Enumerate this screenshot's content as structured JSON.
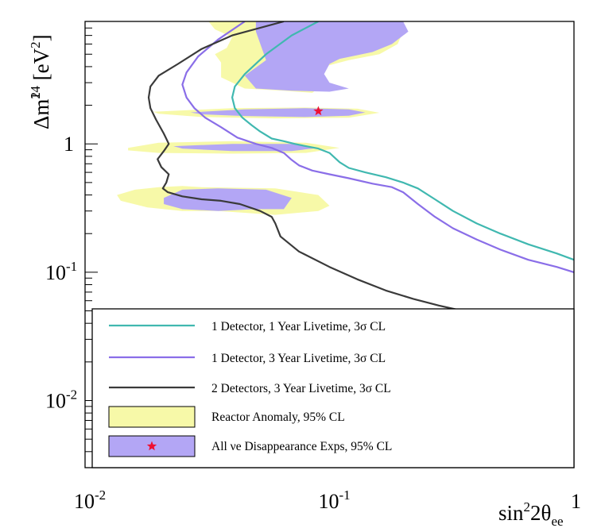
{
  "chart_data": {
    "type": "line",
    "title": "",
    "xlabel": "sin²2θee",
    "ylabel": "Δm²14 [eV²]",
    "x_scale": "log",
    "y_scale": "log",
    "xlim": [
      0.01,
      1
    ],
    "ylim": [
      0.003,
      9
    ],
    "x_ticks": [
      {
        "value": 0.01,
        "base": "10",
        "exp": "-2"
      },
      {
        "value": 0.1,
        "base": "10",
        "exp": "-1"
      },
      {
        "value": 1,
        "base": "1",
        "exp": ""
      }
    ],
    "y_ticks": [
      {
        "value": 0.01,
        "base": "10",
        "exp": "-2"
      },
      {
        "value": 0.1,
        "base": "10",
        "exp": "-1"
      },
      {
        "value": 1,
        "base": "1",
        "exp": ""
      }
    ],
    "grid": false,
    "legend_position": "bottom-right",
    "best_fit_point": {
      "name": "All νe Disappearance Exps best fit",
      "x": 0.09,
      "y": 1.8,
      "marker": "star",
      "color": "#ee1133"
    },
    "series": [
      {
        "name": "1 Detector, 1 Year Livetime, 3σ CL",
        "color": "#40b8b0",
        "x": [
          0.09,
          0.07,
          0.055,
          0.045,
          0.041,
          0.04,
          0.041,
          0.044,
          0.048,
          0.052,
          0.058,
          0.065,
          0.072,
          0.08,
          0.09,
          0.1,
          0.11,
          0.12,
          0.14,
          0.17,
          0.2,
          0.23,
          0.27,
          0.32,
          0.4,
          0.5,
          0.65,
          0.85,
          1.0
        ],
        "y": [
          9.0,
          7.0,
          5.0,
          3.5,
          2.8,
          2.3,
          1.9,
          1.6,
          1.4,
          1.25,
          1.1,
          1.05,
          1.0,
          0.96,
          0.92,
          0.85,
          0.72,
          0.65,
          0.6,
          0.55,
          0.5,
          0.45,
          0.37,
          0.3,
          0.24,
          0.2,
          0.165,
          0.14,
          0.125
        ]
      },
      {
        "name": "1 Detector, 3 Year Livetime, 3σ CL",
        "color": "#8a6ee8",
        "x": [
          0.045,
          0.035,
          0.029,
          0.026,
          0.025,
          0.026,
          0.028,
          0.031,
          0.036,
          0.042,
          0.05,
          0.058,
          0.065,
          0.07,
          0.075,
          0.085,
          0.1,
          0.12,
          0.15,
          0.18,
          0.2,
          0.23,
          0.27,
          0.32,
          0.4,
          0.5,
          0.65,
          0.85,
          1.0
        ],
        "y": [
          9.0,
          6.5,
          4.8,
          3.6,
          2.9,
          2.3,
          1.9,
          1.6,
          1.35,
          1.12,
          1.0,
          0.93,
          0.85,
          0.75,
          0.68,
          0.62,
          0.58,
          0.54,
          0.49,
          0.46,
          0.42,
          0.34,
          0.27,
          0.22,
          0.18,
          0.15,
          0.125,
          0.11,
          0.1
        ]
      },
      {
        "name": "2 Detectors, 3 Year Livetime, 3σ CL",
        "color": "#3a3a3a",
        "x": [
          0.065,
          0.04,
          0.03,
          0.024,
          0.02,
          0.0185,
          0.0182,
          0.0185,
          0.0195,
          0.021,
          0.022,
          0.021,
          0.0198,
          0.0205,
          0.022,
          0.0215,
          0.0208,
          0.0218,
          0.025,
          0.03,
          0.036,
          0.043,
          0.052,
          0.058,
          0.06,
          0.063,
          0.075,
          0.1,
          0.13,
          0.17,
          0.22,
          0.28,
          0.35
        ],
        "y": [
          9.0,
          7.0,
          5.5,
          4.2,
          3.4,
          2.8,
          2.3,
          1.9,
          1.55,
          1.2,
          1.0,
          0.88,
          0.76,
          0.66,
          0.58,
          0.5,
          0.45,
          0.42,
          0.39,
          0.37,
          0.36,
          0.34,
          0.3,
          0.27,
          0.24,
          0.19,
          0.145,
          0.11,
          0.088,
          0.072,
          0.062,
          0.055,
          0.05
        ]
      }
    ],
    "regions": [
      {
        "name": "Reactor Anomaly, 95% CL",
        "color": "#f7f9a8",
        "polygons": [
          {
            "x": [
              0.032,
              0.2,
              0.2,
              0.19,
              0.16,
              0.12,
              0.095,
              0.085,
              0.09,
              0.085,
              0.065,
              0.045,
              0.036,
              0.036,
              0.034,
              0.038,
              0.04,
              0.034,
              0.032
            ],
            "y": [
              9.0,
              9.0,
              7.5,
              6.0,
              5.0,
              4.5,
              4.0,
              3.4,
              2.7,
              2.5,
              2.6,
              2.7,
              3.3,
              4.3,
              5.0,
              5.6,
              6.8,
              7.8,
              9.0
            ]
          },
          {
            "x": [
              0.019,
              0.04,
              0.08,
              0.13,
              0.16,
              0.12,
              0.06,
              0.03,
              0.02
            ],
            "y": [
              1.78,
              1.9,
              1.92,
              1.88,
              1.75,
              1.6,
              1.58,
              1.62,
              1.72
            ]
          },
          {
            "x": [
              0.015,
              0.02,
              0.04,
              0.08,
              0.11,
              0.08,
              0.04,
              0.02,
              0.015
            ],
            "y": [
              0.93,
              1.02,
              1.05,
              1.02,
              0.93,
              0.85,
              0.84,
              0.85,
              0.89
            ]
          },
          {
            "x": [
              0.0135,
              0.016,
              0.02,
              0.025,
              0.03,
              0.06,
              0.09,
              0.1,
              0.09,
              0.06,
              0.035,
              0.025,
              0.018,
              0.014
            ],
            "y": [
              0.4,
              0.44,
              0.46,
              0.47,
              0.46,
              0.45,
              0.4,
              0.33,
              0.3,
              0.28,
              0.3,
              0.3,
              0.32,
              0.36
            ]
          }
        ]
      },
      {
        "name": "All νe Disappearance Exps, 95% CL",
        "color": "#b3a6f5",
        "polygons": [
          {
            "x": [
              0.05,
              0.2,
              0.21,
              0.18,
              0.15,
              0.11,
              0.1,
              0.095,
              0.1,
              0.12,
              0.1,
              0.07,
              0.05,
              0.045,
              0.055,
              0.05
            ],
            "y": [
              9.0,
              9.0,
              7.5,
              6.0,
              5.2,
              4.6,
              4.2,
              3.5,
              3.0,
              2.7,
              2.55,
              2.6,
              2.7,
              3.4,
              4.5,
              7.5
            ]
          },
          {
            "x": [
              0.027,
              0.045,
              0.08,
              0.12,
              0.14,
              0.12,
              0.08,
              0.045,
              0.03
            ],
            "y": [
              1.76,
              1.86,
              1.9,
              1.86,
              1.76,
              1.66,
              1.62,
              1.65,
              1.7
            ]
          },
          {
            "x": [
              0.023,
              0.04,
              0.07,
              0.09,
              0.07,
              0.04,
              0.025
            ],
            "y": [
              0.96,
              1.0,
              1.0,
              0.93,
              0.88,
              0.88,
              0.92
            ]
          },
          {
            "x": [
              0.021,
              0.025,
              0.035,
              0.055,
              0.07,
              0.065,
              0.05,
              0.035,
              0.025,
              0.021
            ],
            "y": [
              0.38,
              0.44,
              0.45,
              0.44,
              0.38,
              0.31,
              0.31,
              0.3,
              0.31,
              0.34
            ]
          }
        ]
      }
    ]
  },
  "legend": {
    "items": [
      {
        "key": "series-0",
        "type": "line",
        "color": "#40b8b0",
        "label": "1 Detector, 1 Year Livetime, 3σ CL"
      },
      {
        "key": "series-1",
        "type": "line",
        "color": "#8a6ee8",
        "label": "1 Detector, 3 Year Livetime, 3σ CL"
      },
      {
        "key": "series-2",
        "type": "line",
        "color": "#3a3a3a",
        "label": "2 Detectors, 3 Year Livetime, 3σ CL"
      },
      {
        "key": "region-0",
        "type": "box",
        "color": "#f7f9a8",
        "label": "Reactor Anomaly, 95% CL"
      },
      {
        "key": "region-1",
        "type": "box-star",
        "color": "#b3a6f5",
        "star_color": "#ee1133",
        "label": "All νe Disappearance Exps, 95% CL"
      }
    ]
  }
}
